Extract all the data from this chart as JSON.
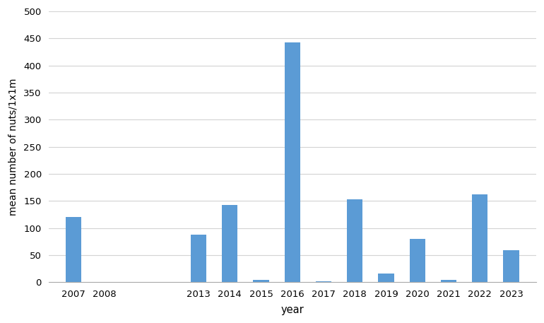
{
  "years": [
    2007,
    2008,
    2013,
    2014,
    2015,
    2016,
    2017,
    2018,
    2019,
    2020,
    2021,
    2022,
    2023
  ],
  "values": [
    120,
    0,
    88,
    142,
    4,
    443,
    1,
    153,
    16,
    80,
    4,
    162,
    59
  ],
  "bar_color": "#5b9bd5",
  "xlabel": "year",
  "ylabel": "mean number of nuts/1x1m",
  "ylim": [
    0,
    500
  ],
  "yticks": [
    0,
    50,
    100,
    150,
    200,
    250,
    300,
    350,
    400,
    450,
    500
  ],
  "background_color": "#ffffff",
  "grid_color": "#d3d3d3",
  "bar_width": 0.5,
  "year_positions": {
    "2007": 0,
    "2008": 1,
    "2013": 4,
    "2014": 5,
    "2015": 6,
    "2016": 7,
    "2017": 8,
    "2018": 9,
    "2019": 10,
    "2020": 11,
    "2021": 12,
    "2022": 13,
    "2023": 14
  }
}
